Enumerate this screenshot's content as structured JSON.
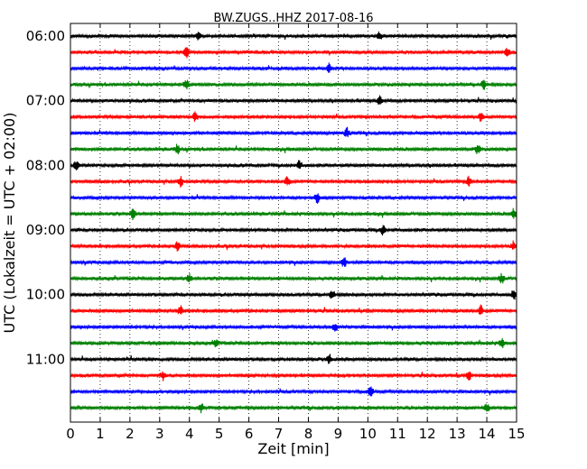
{
  "chart_data": {
    "type": "line",
    "title": "BW.ZUGS..HHZ 2017-08-16",
    "xlabel": "Zeit  [min]",
    "ylabel": "UTC (Lokalzeit = UTC + 02:00)",
    "xlim": [
      0,
      15
    ],
    "x_ticks": [
      "0",
      "1",
      "2",
      "3",
      "4",
      "5",
      "6",
      "7",
      "8",
      "9",
      "10",
      "11",
      "12",
      "13",
      "14",
      "15"
    ],
    "y_tick_labels": [
      "06:00",
      "07:00",
      "08:00",
      "09:00",
      "10:00",
      "11:00"
    ],
    "grid": "vertical dotted",
    "series_colors": [
      "#000000",
      "#ff0000",
      "#0000ff",
      "#008000"
    ],
    "traces": [
      {
        "start": "06:00",
        "events": [
          4.3,
          10.4
        ]
      },
      {
        "start": "06:15",
        "events": [
          3.9,
          14.7
        ]
      },
      {
        "start": "06:30",
        "events": [
          8.7
        ]
      },
      {
        "start": "06:45",
        "events": [
          3.9,
          13.9
        ]
      },
      {
        "start": "07:00",
        "events": [
          10.4
        ]
      },
      {
        "start": "07:15",
        "events": [
          4.2,
          13.8
        ]
      },
      {
        "start": "07:30",
        "events": [
          9.3
        ]
      },
      {
        "start": "07:45",
        "events": [
          3.6,
          13.7
        ]
      },
      {
        "start": "08:00",
        "events": [
          0.2,
          7.7
        ]
      },
      {
        "start": "08:15",
        "events": [
          3.7,
          7.3,
          13.4
        ]
      },
      {
        "start": "08:30",
        "events": [
          8.3
        ]
      },
      {
        "start": "08:45",
        "events": [
          2.1,
          14.9
        ]
      },
      {
        "start": "09:00",
        "events": [
          10.5
        ]
      },
      {
        "start": "09:15",
        "events": [
          3.6,
          14.9
        ]
      },
      {
        "start": "09:30",
        "events": [
          9.2
        ]
      },
      {
        "start": "09:45",
        "events": [
          4.0,
          14.5
        ]
      },
      {
        "start": "10:00",
        "events": [
          8.8,
          14.9
        ]
      },
      {
        "start": "10:15",
        "events": [
          3.7,
          13.8
        ]
      },
      {
        "start": "10:30",
        "events": [
          8.9
        ]
      },
      {
        "start": "10:45",
        "events": [
          4.9,
          14.5
        ]
      },
      {
        "start": "11:00",
        "events": [
          8.7
        ]
      },
      {
        "start": "11:15",
        "events": [
          3.1,
          13.4
        ]
      },
      {
        "start": "11:30",
        "events": [
          10.1
        ]
      },
      {
        "start": "11:45",
        "events": [
          4.4,
          14.0
        ]
      }
    ]
  }
}
